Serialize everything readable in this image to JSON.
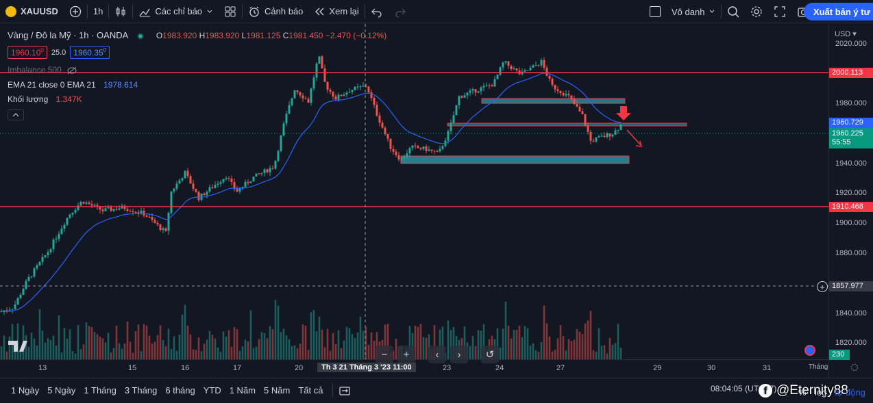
{
  "toolbar": {
    "symbol": "XAUUSD",
    "interval": "1h",
    "indicators_label": "Các chỉ báo",
    "alert_label": "Cảnh báo",
    "replay_label": "Xem lại",
    "layout_name": "Vô danh",
    "publish_label": "Xuất bản ý tư"
  },
  "legend": {
    "title": "Vàng / Đô la Mỹ · 1h · OANDA",
    "o_label": "O",
    "o_value": "1983.920",
    "h_label": "H",
    "h_value": "1983.920",
    "l_label": "L",
    "l_value": "1981.125",
    "c_label": "C",
    "c_value": "1981.450",
    "change": "−2.470 (−0.12%)",
    "bid": "1960.10",
    "bid_sup": "0",
    "spread": "25.0",
    "ask": "1960.35",
    "ask_sup": "0",
    "imbalance_label": "Imbalance 500",
    "ema_label": "EMA 21 close 0 EMA 21",
    "ema_value": "1978.614",
    "volume_label": "Khối lượng",
    "volume_value": "1.347K"
  },
  "price_axis": {
    "currency": "USD",
    "ticks": [
      "2020.000",
      "1980.000",
      "1940.000",
      "1920.000",
      "1900.000",
      "1880.000",
      "1840.000",
      "1820.000"
    ],
    "resistance_label": "2000.113",
    "support_label": "1910.468",
    "current_bid": "1960.729",
    "current_price": "1960.225",
    "countdown": "55:55",
    "crosshair_price": "1857.977",
    "volume_tag": "230"
  },
  "time_axis": {
    "ticks": [
      "13",
      "15",
      "16",
      "17",
      "20",
      "23",
      "24",
      "27",
      "29",
      "30",
      "31"
    ],
    "crosshair_label": "Th 3 21 Tháng 3 '23  11:00",
    "right_label": "Tháng"
  },
  "bottombar": {
    "ranges": [
      "1 Ngày",
      "5 Ngày",
      "1 Tháng",
      "3 Tháng",
      "6 tháng",
      "YTD",
      "1 Năm",
      "5 Năm",
      "Tất cả"
    ],
    "clock": "08:04:05 (UTC+7)",
    "percent": "%",
    "log": "log",
    "auto": "tự động"
  },
  "watermark": "@Eternity88",
  "colors": {
    "bg": "#131722",
    "up": "#26a69a",
    "down": "#ef5350",
    "ema": "#2962ff",
    "zone": "#2a9aa8",
    "hline": "#f23645"
  },
  "chart_data": {
    "type": "candlestick",
    "symbol": "XAUUSD",
    "timeframe": "1h",
    "ylim": [
      1812,
      2024
    ],
    "ema_period": 21,
    "support_line": 1910.468,
    "resistance_line": 2000.113,
    "path_points": [
      [
        0,
        1842
      ],
      [
        20,
        1845
      ],
      [
        40,
        1862
      ],
      [
        70,
        1880
      ],
      [
        100,
        1903
      ],
      [
        120,
        1912
      ],
      [
        150,
        1906
      ],
      [
        180,
        1908
      ],
      [
        210,
        1904
      ],
      [
        242,
        1892
      ],
      [
        250,
        1918
      ],
      [
        270,
        1930
      ],
      [
        290,
        1914
      ],
      [
        310,
        1921
      ],
      [
        330,
        1928
      ],
      [
        345,
        1918
      ],
      [
        370,
        1927
      ],
      [
        400,
        1934
      ],
      [
        415,
        1962
      ],
      [
        430,
        1983
      ],
      [
        450,
        1975
      ],
      [
        465,
        2004
      ],
      [
        475,
        1985
      ],
      [
        490,
        1977
      ],
      [
        510,
        1982
      ],
      [
        535,
        1985
      ],
      [
        550,
        1967
      ],
      [
        570,
        1946
      ],
      [
        585,
        1938
      ],
      [
        600,
        1946
      ],
      [
        620,
        1945
      ],
      [
        640,
        1942
      ],
      [
        655,
        1956
      ],
      [
        670,
        1978
      ],
      [
        700,
        1983
      ],
      [
        720,
        1986
      ],
      [
        735,
        2000
      ],
      [
        760,
        1992
      ],
      [
        790,
        2000
      ],
      [
        805,
        1985
      ],
      [
        830,
        1978
      ],
      [
        850,
        1966
      ],
      [
        862,
        1950
      ],
      [
        875,
        1952
      ],
      [
        895,
        1955
      ],
      [
        906,
        1960
      ]
    ]
  }
}
